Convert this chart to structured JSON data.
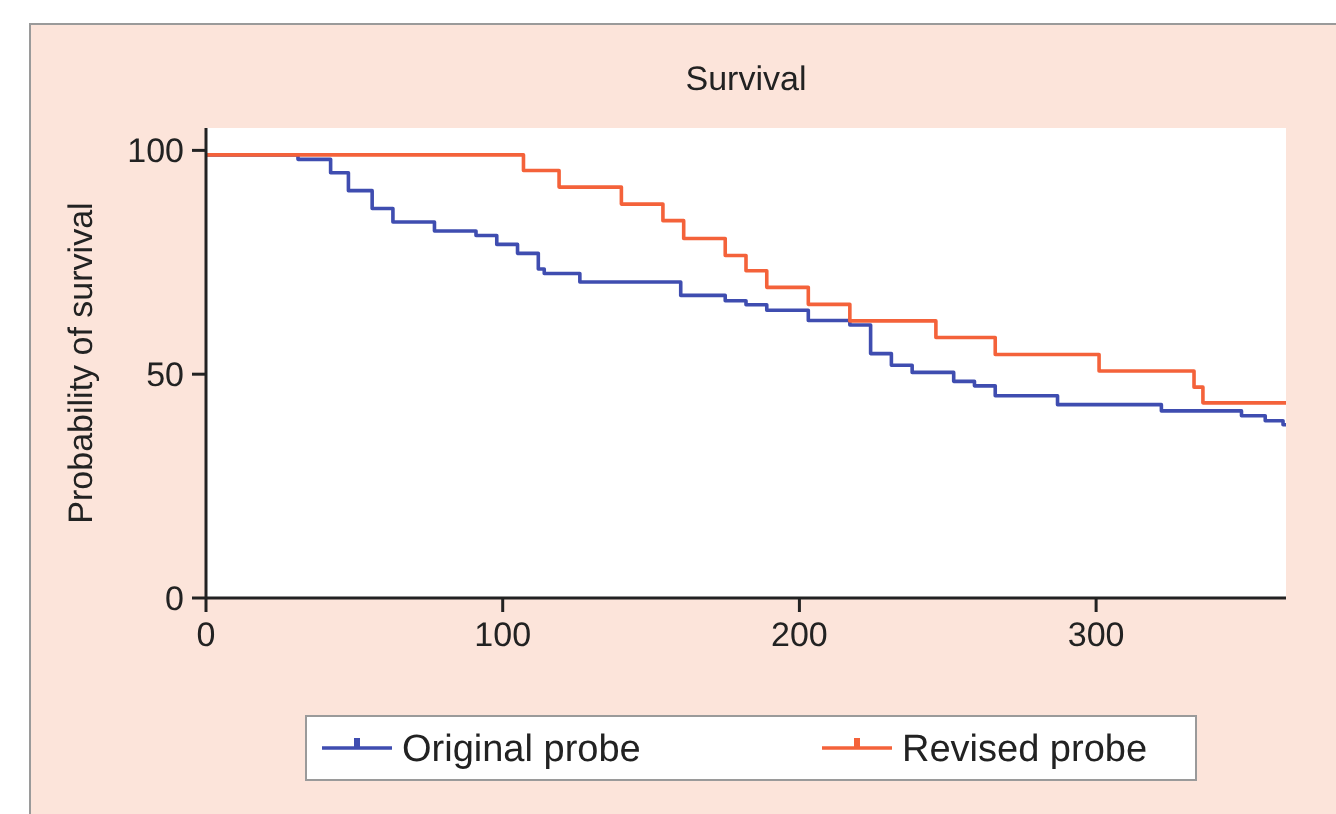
{
  "chart_data": {
    "type": "step",
    "title": "Survival",
    "ylabel": "Probability of survival",
    "xlim": [
      0,
      364
    ],
    "ylim": [
      0,
      105
    ],
    "xticks": [
      0,
      100,
      200,
      300
    ],
    "yticks": [
      0,
      50,
      100
    ],
    "grid": false,
    "legend": "bottom",
    "marker": "none",
    "line_style": "solid",
    "series": [
      {
        "name": "Original probe",
        "color": "#3f4db0",
        "x": [
          0,
          31,
          42,
          48,
          56,
          63,
          77,
          91,
          98,
          105,
          112,
          114,
          126,
          160,
          175,
          182,
          189,
          203,
          217,
          224,
          231,
          238,
          252,
          259,
          266,
          287,
          322,
          349,
          357,
          363,
          364
        ],
        "values": [
          99,
          98,
          95,
          91,
          87,
          84,
          82,
          81,
          79,
          77,
          73.5,
          72.5,
          70.6,
          67.6,
          66.4,
          65.5,
          64.3,
          62,
          61,
          54.6,
          52,
          50.4,
          48.4,
          47.4,
          45.2,
          43.2,
          41.8,
          40.7,
          39.6,
          38.7,
          38.7
        ]
      },
      {
        "name": "Revised probe",
        "color": "#f4623a",
        "x": [
          0,
          107,
          119,
          140,
          154,
          161,
          175,
          182,
          189,
          203,
          217,
          246,
          266,
          301,
          333,
          336,
          364
        ],
        "values": [
          99,
          95.5,
          91.8,
          88,
          84.3,
          80.3,
          76.5,
          73.1,
          69.4,
          65.6,
          61.9,
          58.2,
          54.4,
          50.7,
          47.1,
          43.6,
          43.6
        ]
      }
    ]
  }
}
